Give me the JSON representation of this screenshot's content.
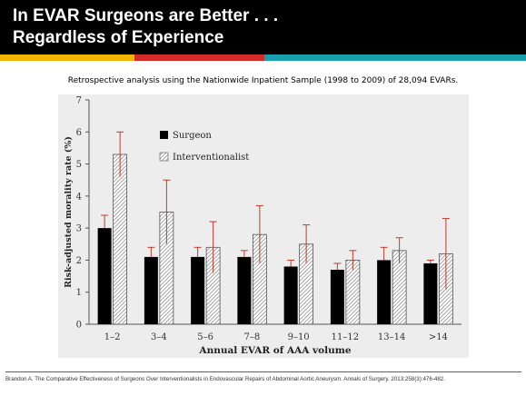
{
  "slide": {
    "title_line1": "In EVAR Surgeons are Better . . .",
    "title_line2": "Regardless of Experience",
    "subtitle": "Retrospective analysis using the Nationwide Inpatient Sample (1998 to 2009) of 28,094 EVARs.",
    "citation": "Brandon A. The Comparative Effectiveness of Surgeons Over Interventionalists in Endovascular Repairs of Abdominal Aortic Aneurysm.  Annals of Surgery. 2013;258(3):476-482.",
    "colors": {
      "header": "#000000",
      "stripe_yellow": "#f5b400",
      "stripe_red": "#d62b2b",
      "stripe_teal": "#1a9fb0",
      "chart_bg": "#ededed"
    }
  },
  "chart_data": {
    "type": "bar",
    "xlabel": "Annual EVAR of AAA volume",
    "ylabel": "Risk-adjusted morality rate (%)",
    "ylim": [
      0,
      7
    ],
    "yticks": [
      0,
      1,
      2,
      3,
      4,
      5,
      6,
      7
    ],
    "categories": [
      "1–2",
      "3–4",
      "5–6",
      "7–8",
      "9–10",
      "11–12",
      "13–14",
      ">14"
    ],
    "legend_position": "top-left",
    "series": [
      {
        "name": "Surgeon",
        "fill": "solid-black",
        "values": [
          3.0,
          2.1,
          2.1,
          2.1,
          1.8,
          1.7,
          2.0,
          1.9
        ],
        "err_upper": [
          3.4,
          2.4,
          2.4,
          2.3,
          2.0,
          1.9,
          2.4,
          2.0
        ]
      },
      {
        "name": "Interventionalist",
        "fill": "diagonal-hatch",
        "values": [
          5.3,
          3.5,
          2.4,
          2.8,
          2.5,
          2.0,
          2.3,
          2.2
        ],
        "err_upper": [
          6.0,
          4.5,
          3.2,
          3.7,
          3.1,
          2.3,
          2.7,
          3.3
        ],
        "err_lower": [
          4.6,
          2.5,
          1.6,
          1.9,
          1.9,
          1.7,
          1.9,
          1.1
        ]
      }
    ]
  }
}
